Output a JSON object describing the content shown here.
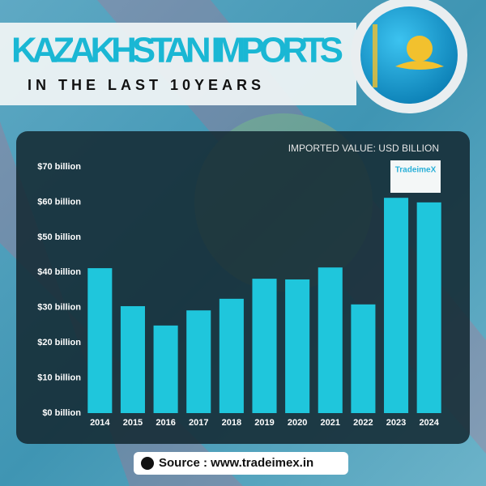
{
  "header": {
    "title": "KAZAKHSTAN IMPORTS",
    "subtitle": "IN THE LAST 10YEARS"
  },
  "logo": "TradeimeX",
  "source": "Source : www.tradeimex.in",
  "chart_data": {
    "type": "bar",
    "annotation": "IMPORTED VALUE: USD BILLION",
    "categories": [
      "2014",
      "2015",
      "2016",
      "2017",
      "2018",
      "2019",
      "2020",
      "2021",
      "2022",
      "2023",
      "2024"
    ],
    "values": [
      41.2,
      30.4,
      24.9,
      29.2,
      32.5,
      38.2,
      38.0,
      41.4,
      30.9,
      61.2,
      59.9
    ],
    "color": "#1fc6dc",
    "ylim": [
      0,
      70
    ],
    "yticks": [
      {
        "value": 0,
        "label": "$0 billion"
      },
      {
        "value": 10,
        "label": "$10 billion"
      },
      {
        "value": 20,
        "label": "$20 billion"
      },
      {
        "value": 30,
        "label": "$30 billion"
      },
      {
        "value": 40,
        "label": "$40 billion"
      },
      {
        "value": 50,
        "label": "$50 billion"
      },
      {
        "value": 60,
        "label": "$60 billion"
      },
      {
        "value": 70,
        "label": "$70 billion"
      }
    ],
    "grid": false
  }
}
